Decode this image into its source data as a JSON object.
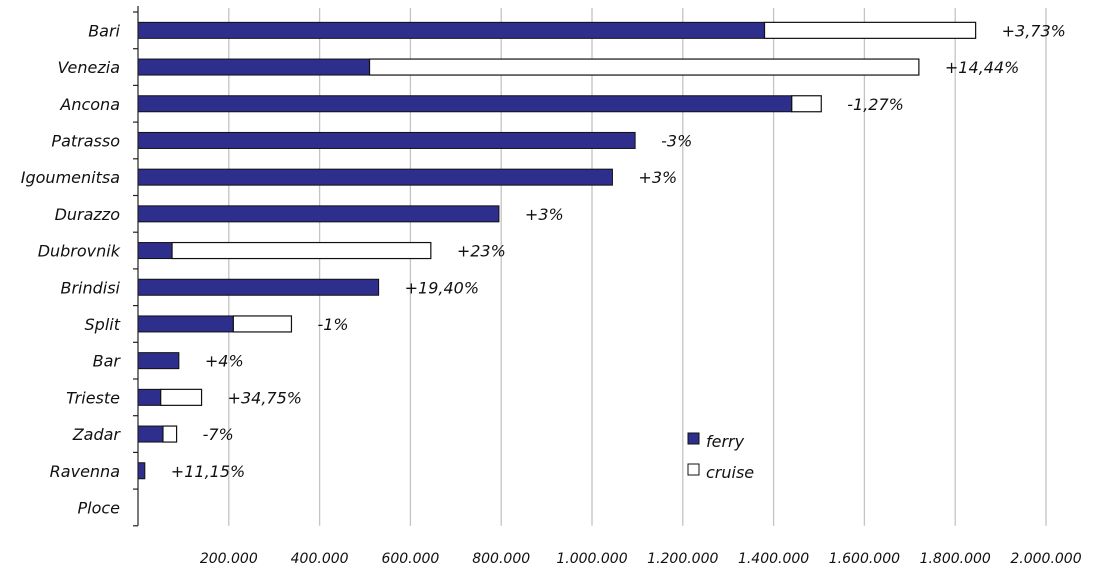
{
  "chart_data": {
    "type": "bar",
    "orientation": "horizontal",
    "stacked": true,
    "categories": [
      "Bari",
      "Venezia",
      "Ancona",
      "Patrasso",
      "Igoumenitsa",
      "Durazzo",
      "Dubrovnik",
      "Brindisi",
      "Split",
      "Bar",
      "Trieste",
      "Zadar",
      "Ravenna",
      "Ploce"
    ],
    "series": [
      {
        "name": "ferry",
        "color": "#2e2e8c",
        "values": [
          1380000,
          510000,
          1440000,
          1095000,
          1045000,
          795000,
          75000,
          530000,
          210000,
          90000,
          50000,
          55000,
          15000,
          0
        ]
      },
      {
        "name": "cruise",
        "color": "#ffffff",
        "values": [
          465000,
          1210000,
          65000,
          0,
          0,
          0,
          570000,
          0,
          128000,
          0,
          90000,
          30000,
          0,
          0
        ]
      }
    ],
    "annotations": [
      "+3,73%",
      "+14,44%",
      "-1,27%",
      "-3%",
      "+3%",
      "+3%",
      "+23%",
      "+19,40%",
      "-1%",
      "+4%",
      "+34,75%",
      "-7%",
      "+11,15%",
      ""
    ],
    "xlim": [
      0,
      2000000
    ],
    "x_ticks": [
      0,
      200000,
      400000,
      600000,
      800000,
      1000000,
      1200000,
      1400000,
      1600000,
      1800000,
      2000000
    ],
    "x_tick_labels": [
      "",
      "200.000",
      "400.000",
      "600.000",
      "800.000",
      "1.000.000",
      "1.200.000",
      "1.400.000",
      "1.600.000",
      "1.800.000",
      "2.000.000"
    ],
    "grid": true,
    "legend_position": "bottom-right",
    "title": "",
    "xlabel": "",
    "ylabel": ""
  }
}
